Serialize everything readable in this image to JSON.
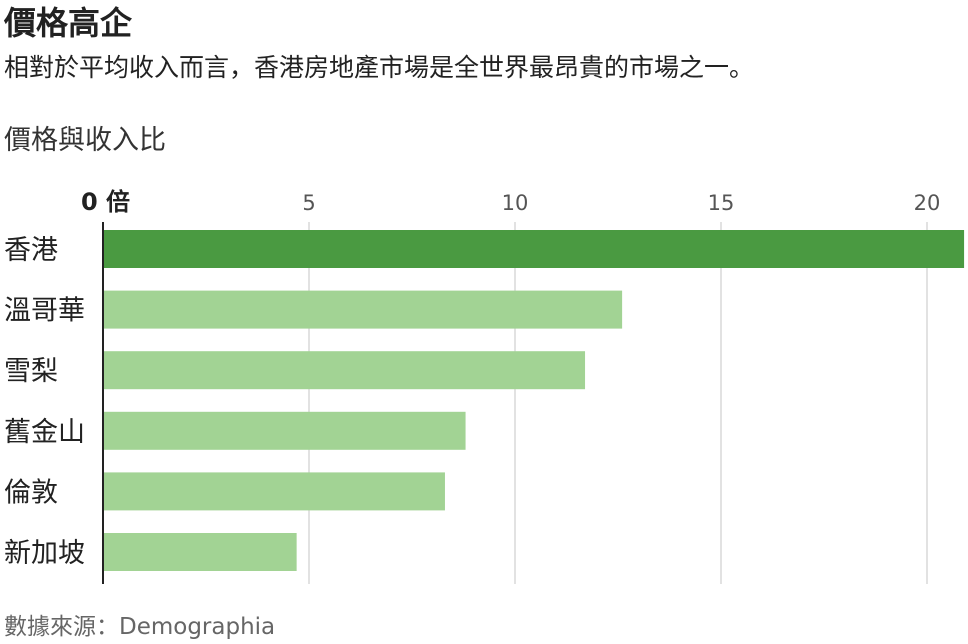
{
  "header": {
    "title": "價格高企",
    "subtitle": "相對於平均收入而言，香港房地產市場是全世界最昂貴的市場之一。"
  },
  "chart_data": {
    "type": "bar",
    "orientation": "horizontal",
    "title": "價格與收入比",
    "categories": [
      "香港",
      "溫哥華",
      "雪梨",
      "舊金山",
      "倫敦",
      "新加坡"
    ],
    "values": [
      20.9,
      12.6,
      11.7,
      8.8,
      8.3,
      4.7
    ],
    "x_ticks": [
      0,
      5,
      10,
      15,
      20
    ],
    "x_tick_labels": [
      "0 倍",
      "5",
      "10",
      "15",
      "20"
    ],
    "xlim": [
      0,
      21
    ],
    "grid": true,
    "colors": {
      "highlight": "#4a9a41",
      "default": "#a2d394",
      "gridline": "#d9d9d9",
      "axis": "#222222"
    },
    "highlight_category": "香港"
  },
  "footer": {
    "source": "數據來源：Demographia"
  }
}
